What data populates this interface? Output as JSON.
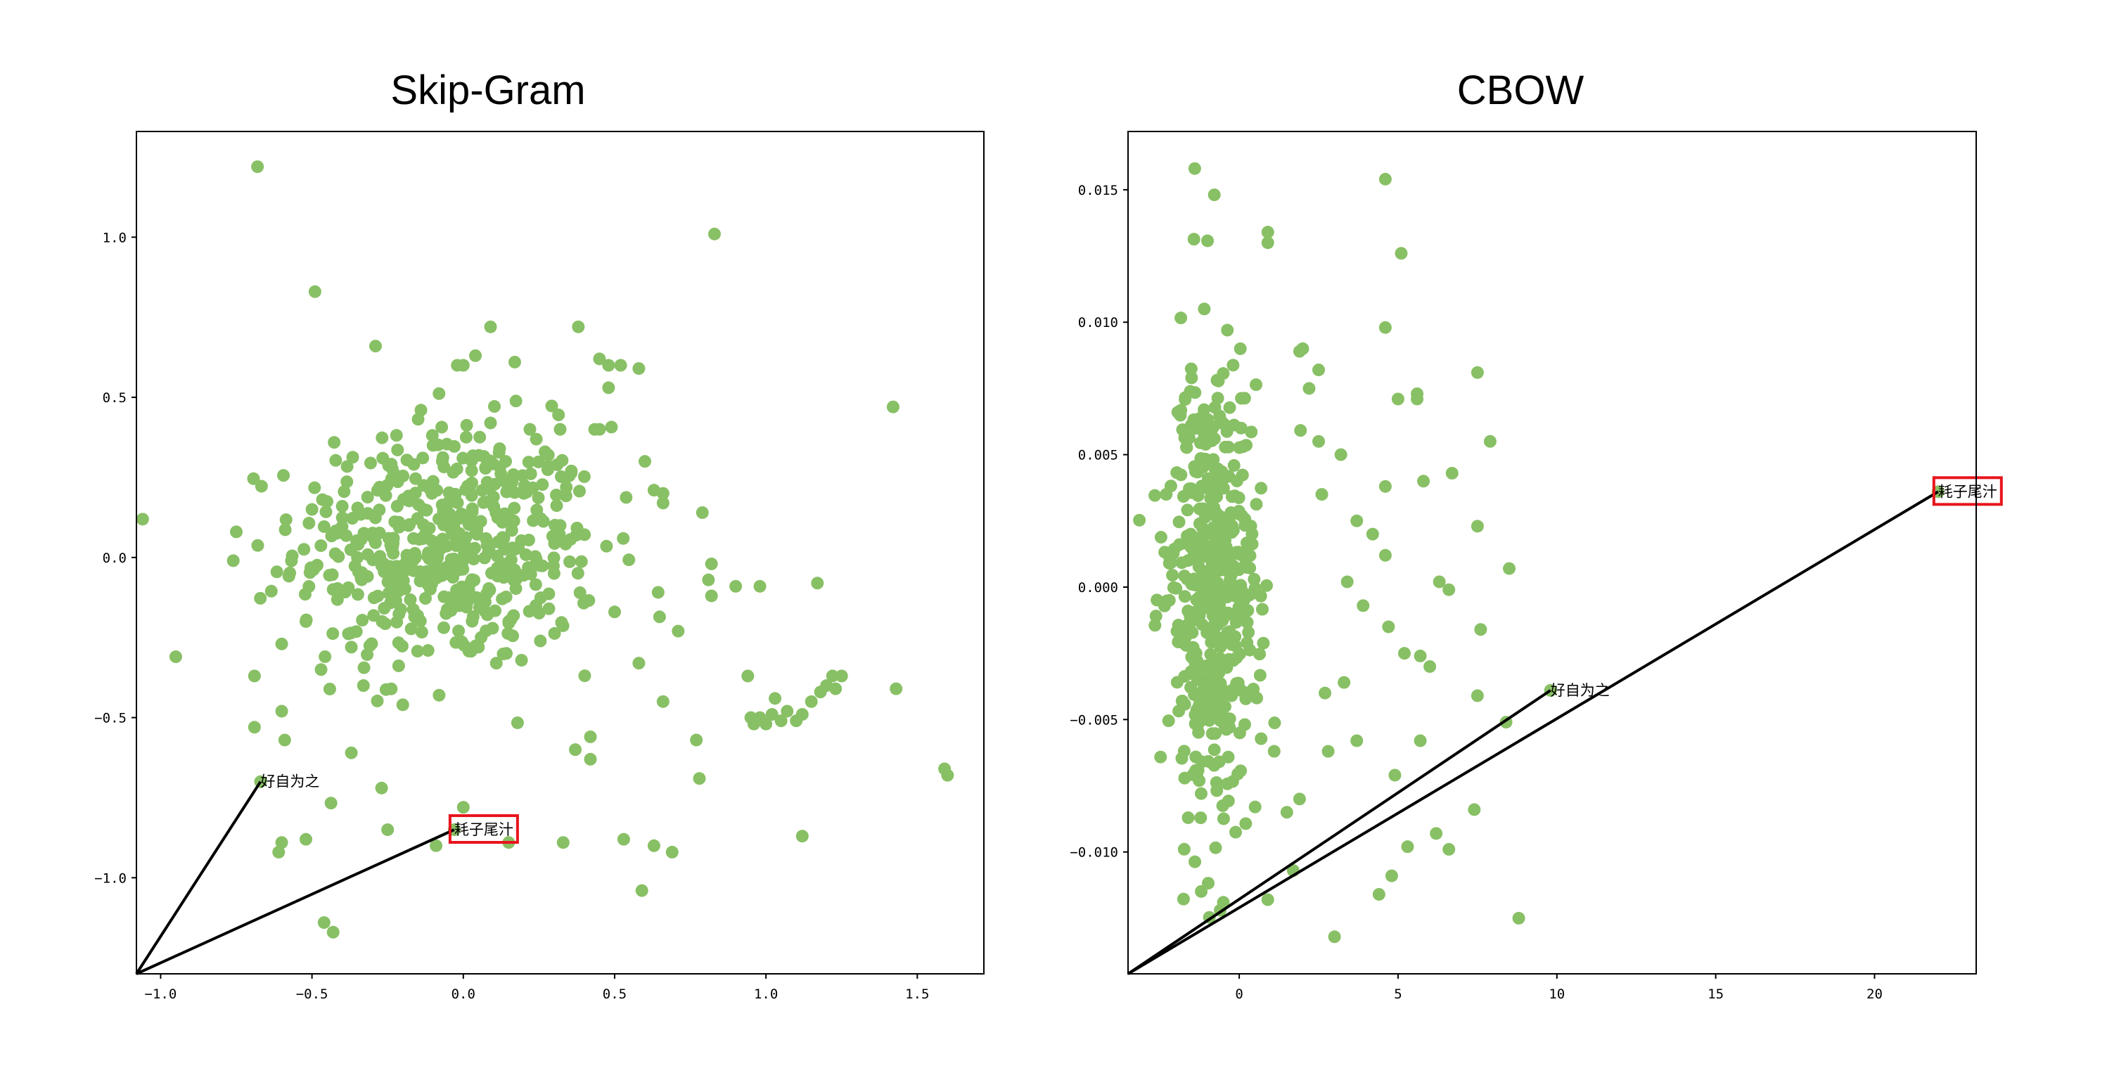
{
  "chart_data": [
    {
      "type": "scatter",
      "title": "Skip-Gram",
      "xlabel": "",
      "ylabel": "",
      "xlim": [
        -1.08,
        1.72
      ],
      "ylim": [
        -1.3,
        1.33
      ],
      "xticks": [
        -1.0,
        -0.5,
        0.0,
        0.5,
        1.0,
        1.5
      ],
      "xtick_labels": [
        "−1.0",
        "−0.5",
        "0.0",
        "0.5",
        "1.0",
        "1.5"
      ],
      "yticks": [
        -1.0,
        -0.5,
        0.0,
        0.5,
        1.0
      ],
      "ytick_labels": [
        "−1.0",
        "−0.5",
        "0.0",
        "0.5",
        "1.0"
      ],
      "grid": false,
      "marker_color": "#88c065",
      "origin": [
        -1.08,
        -1.3
      ],
      "series": [
        {
          "values": [
            [
              -0.68,
              1.22
            ],
            [
              -0.49,
              0.83
            ],
            [
              0.83,
              1.01
            ],
            [
              1.42,
              0.47
            ],
            [
              -0.29,
              0.66
            ],
            [
              -0.95,
              -0.31
            ],
            [
              -0.75,
              0.08
            ],
            [
              -0.76,
              -0.01
            ],
            [
              -0.69,
              -0.37
            ],
            [
              -0.69,
              -0.53
            ],
            [
              -0.6,
              -0.27
            ],
            [
              -0.6,
              -0.48
            ],
            [
              -0.59,
              -0.57
            ],
            [
              -0.61,
              -0.92
            ],
            [
              -0.6,
              -0.89
            ],
            [
              -0.52,
              -0.88
            ],
            [
              -0.46,
              -1.14
            ],
            [
              -0.43,
              -1.17
            ],
            [
              -0.37,
              -0.61
            ],
            [
              -0.37,
              -0.28
            ],
            [
              -0.27,
              -0.72
            ],
            [
              -0.25,
              -0.85
            ],
            [
              0.0,
              -0.78
            ],
            [
              -0.09,
              -0.9
            ],
            [
              0.15,
              -0.89
            ],
            [
              0.33,
              -0.89
            ],
            [
              0.53,
              -0.88
            ],
            [
              0.63,
              -0.9
            ],
            [
              0.69,
              -0.92
            ],
            [
              0.59,
              -1.04
            ],
            [
              0.42,
              -0.56
            ],
            [
              0.37,
              -0.6
            ],
            [
              0.42,
              -0.63
            ],
            [
              0.77,
              -0.57
            ],
            [
              0.78,
              -0.69
            ],
            [
              0.66,
              -0.45
            ],
            [
              0.58,
              -0.33
            ],
            [
              0.71,
              -0.23
            ],
            [
              0.5,
              -0.17
            ],
            [
              0.82,
              -0.12
            ],
            [
              0.9,
              -0.09
            ],
            [
              0.98,
              -0.09
            ],
            [
              0.81,
              -0.07
            ],
            [
              0.82,
              -0.02
            ],
            [
              0.79,
              0.14
            ],
            [
              0.66,
              0.17
            ],
            [
              0.63,
              0.21
            ],
            [
              0.66,
              0.2
            ],
            [
              0.6,
              0.3
            ],
            [
              0.58,
              0.59
            ],
            [
              0.52,
              0.6
            ],
            [
              0.48,
              0.6
            ],
            [
              0.45,
              0.62
            ],
            [
              0.38,
              0.72
            ],
            [
              0.48,
              0.53
            ],
            [
              0.45,
              0.4
            ],
            [
              0.32,
              0.4
            ],
            [
              0.17,
              0.61
            ],
            [
              0.09,
              0.72
            ],
            [
              0.04,
              0.63
            ],
            [
              -0.02,
              0.6
            ],
            [
              -0.14,
              0.46
            ],
            [
              0.0,
              0.6
            ],
            [
              0.96,
              -0.52
            ],
            [
              0.98,
              -0.5
            ],
            [
              1.0,
              -0.52
            ],
            [
              1.02,
              -0.49
            ],
            [
              1.05,
              -0.51
            ],
            [
              1.07,
              -0.48
            ],
            [
              1.1,
              -0.51
            ],
            [
              1.12,
              -0.49
            ],
            [
              1.15,
              -0.45
            ],
            [
              1.18,
              -0.42
            ],
            [
              1.2,
              -0.4
            ],
            [
              1.22,
              -0.37
            ],
            [
              1.25,
              -0.37
            ],
            [
              1.23,
              -0.41
            ],
            [
              1.17,
              -0.08
            ],
            [
              1.43,
              -0.41
            ],
            [
              1.12,
              -0.87
            ],
            [
              1.59,
              -0.66
            ],
            [
              1.6,
              -0.68
            ],
            [
              0.95,
              -0.5
            ],
            [
              1.03,
              -0.44
            ],
            [
              0.94,
              -0.37
            ],
            [
              0.27,
              0.33
            ],
            [
              0.22,
              0.4
            ],
            [
              0.14,
              0.3
            ],
            [
              0.09,
              0.42
            ],
            [
              -0.1,
              0.35
            ],
            [
              -0.4,
              0.16
            ],
            [
              -0.5,
              0.15
            ],
            [
              -0.35,
              0.0
            ],
            [
              -0.43,
              -0.1
            ],
            [
              -0.52,
              -0.2
            ],
            [
              -0.47,
              -0.35
            ],
            [
              -0.33,
              -0.4
            ],
            [
              -0.2,
              -0.46
            ],
            [
              -0.08,
              -0.43
            ],
            [
              0.05,
              -0.28
            ],
            [
              0.15,
              -0.2
            ],
            [
              0.24,
              -0.15
            ],
            [
              0.3,
              -0.05
            ],
            [
              0.32,
              0.1
            ],
            [
              0.2,
              0.2
            ]
          ]
        }
      ],
      "cloud": {
        "center": [
          -0.05,
          0.03
        ],
        "spread": [
          0.25,
          0.19
        ],
        "count": 500
      },
      "annotations": [
        {
          "text": "好自为之",
          "point": [
            -0.67,
            -0.7
          ],
          "boxed": false
        },
        {
          "text": "耗子尾汁",
          "point": [
            -0.03,
            -0.85
          ],
          "boxed": true
        }
      ]
    },
    {
      "type": "scatter",
      "title": "CBOW",
      "xlabel": "",
      "ylabel": "",
      "xlim": [
        -3.5,
        23.2
      ],
      "ylim": [
        -0.0146,
        0.0172
      ],
      "xticks": [
        0,
        5,
        10,
        15,
        20
      ],
      "xtick_labels": [
        "0",
        "5",
        "10",
        "15",
        "20"
      ],
      "yticks": [
        -0.01,
        -0.005,
        0.0,
        0.005,
        0.01,
        0.015
      ],
      "ytick_labels": [
        "−0.010",
        "−0.005",
        "0.000",
        "0.005",
        "0.010",
        "0.015"
      ],
      "grid": false,
      "marker_color": "#88c065",
      "origin": [
        -3.5,
        -0.0146
      ],
      "series": [
        {
          "values": [
            [
              -1.4,
              0.0158
            ],
            [
              4.6,
              0.0154
            ],
            [
              0.9,
              0.0134
            ],
            [
              0.9,
              0.013
            ],
            [
              5.1,
              0.0126
            ],
            [
              -1.1,
              0.0105
            ],
            [
              4.6,
              0.0098
            ],
            [
              2.5,
              0.0082
            ],
            [
              7.5,
              0.0081
            ],
            [
              5.6,
              0.0073
            ],
            [
              5.6,
              0.0071
            ],
            [
              5.0,
              0.0071
            ],
            [
              7.9,
              0.0055
            ],
            [
              6.7,
              0.0043
            ],
            [
              7.5,
              0.0023
            ],
            [
              8.5,
              0.0007
            ],
            [
              6.6,
              -0.0001
            ],
            [
              5.7,
              -0.0026
            ],
            [
              7.6,
              -0.0016
            ],
            [
              7.5,
              -0.0041
            ],
            [
              7.4,
              -0.0084
            ],
            [
              6.6,
              -0.0099
            ],
            [
              6.2,
              -0.0093
            ],
            [
              5.3,
              -0.0098
            ],
            [
              4.8,
              -0.0109
            ],
            [
              4.4,
              -0.0116
            ],
            [
              3.0,
              -0.0132
            ],
            [
              8.8,
              -0.0125
            ],
            [
              0.9,
              -0.0118
            ],
            [
              -0.5,
              -0.0119
            ],
            [
              -0.6,
              -0.0122
            ],
            [
              1.7,
              -0.0107
            ],
            [
              8.4,
              -0.0051
            ],
            [
              5.7,
              -0.0058
            ],
            [
              4.9,
              -0.0071
            ],
            [
              3.7,
              -0.0058
            ],
            [
              2.8,
              -0.0062
            ],
            [
              6.0,
              -0.003
            ],
            [
              5.2,
              -0.0025
            ],
            [
              4.7,
              -0.0015
            ],
            [
              3.9,
              -0.0007
            ],
            [
              3.4,
              0.0002
            ],
            [
              4.6,
              0.0012
            ],
            [
              6.3,
              0.0002
            ],
            [
              5.8,
              0.004
            ],
            [
              4.6,
              0.0038
            ],
            [
              3.2,
              0.005
            ],
            [
              2.5,
              0.0055
            ],
            [
              3.7,
              0.0025
            ],
            [
              4.2,
              0.002
            ],
            [
              -2.3,
              0.0035
            ],
            [
              -2.2,
              0.0009
            ],
            [
              -2.2,
              -0.0005
            ],
            [
              -1.8,
              -0.0043
            ],
            [
              9.8,
              -0.0039
            ],
            [
              2.0,
              0.009
            ],
            [
              1.9,
              0.0089
            ],
            [
              2.2,
              0.0075
            ],
            [
              2.6,
              0.0035
            ],
            [
              3.3,
              -0.0036
            ],
            [
              1.9,
              -0.008
            ],
            [
              1.5,
              -0.0085
            ],
            [
              2.7,
              -0.004
            ],
            [
              1.1,
              -0.0062
            ],
            [
              0.5,
              -0.0083
            ]
          ]
        }
      ],
      "cloud": {
        "center": [
          -0.9,
          0.0
        ],
        "spread": [
          0.7,
          0.0042
        ],
        "count": 500
      },
      "annotations": [
        {
          "text": "好自为之",
          "point": [
            9.8,
            -0.0039
          ],
          "boxed": false
        },
        {
          "text": "耗子尾汁",
          "point": [
            22.0,
            0.0036
          ],
          "boxed": true
        }
      ]
    }
  ]
}
